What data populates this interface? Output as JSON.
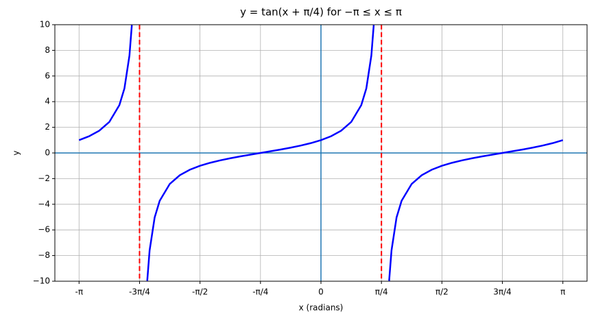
{
  "chart_data": {
    "type": "line",
    "title": "y = tan(x + π/4) for −π ≤ x ≤ π",
    "xlabel": "x (radians)",
    "ylabel": "y",
    "x": [
      -3.1416,
      -3.0107,
      -2.8798,
      -2.7489,
      -2.618,
      -2.5525,
      -2.4871,
      -2.4562,
      -2.3562,
      -2.2562,
      -2.2253,
      -2.1598,
      -2.0944,
      -1.9635,
      -1.8326,
      -1.7017,
      -1.5708,
      -1.4399,
      -1.309,
      -1.1781,
      -1.0472,
      -0.9163,
      -0.7854,
      -0.6545,
      -0.5236,
      -0.3927,
      -0.2618,
      -0.1309,
      0,
      0.1309,
      0.2618,
      0.3927,
      0.5236,
      0.589,
      0.6545,
      0.6854,
      0.7854,
      0.8854,
      0.9163,
      0.9817,
      1.0472,
      1.1781,
      1.309,
      1.4399,
      1.5708,
      1.7017,
      1.8326,
      1.9635,
      2.0944,
      2.2253,
      2.3562,
      2.4871,
      2.618,
      2.7489,
      2.8798,
      3.0107,
      3.1416
    ],
    "values": [
      1,
      1.3032,
      1.7321,
      2.4142,
      3.7321,
      5.0273,
      7.5958,
      9.9666,
      null,
      -9.9666,
      -7.5958,
      -5.0273,
      -3.7321,
      -2.4142,
      -1.7321,
      -1.3032,
      -1,
      -0.7673,
      -0.5774,
      -0.4142,
      -0.2679,
      -0.1317,
      0,
      0.1317,
      0.2679,
      0.4142,
      0.5774,
      0.7673,
      1,
      1.3032,
      1.7321,
      2.4142,
      3.7321,
      5.0273,
      7.5958,
      9.9666,
      null,
      -9.9666,
      -7.5958,
      -5.0273,
      -3.7321,
      -2.4142,
      -1.7321,
      -1.3032,
      -1,
      -0.7673,
      -0.5774,
      -0.4142,
      -0.2679,
      -0.1317,
      0,
      0.1317,
      0.2679,
      0.4142,
      0.5774,
      0.7673,
      1
    ],
    "color": "#0000ff",
    "xlim": [
      -3.4558,
      3.4558
    ],
    "ylim": [
      -10,
      10
    ],
    "xticks": [
      {
        "value": -3.1416,
        "label": "-π"
      },
      {
        "value": -2.3562,
        "label": "-3π/4"
      },
      {
        "value": -1.5708,
        "label": "-π/2"
      },
      {
        "value": -0.7854,
        "label": "-π/4"
      },
      0,
      {
        "value": 0.7854,
        "label": "π/4"
      },
      {
        "value": 1.5708,
        "label": "π/2"
      },
      {
        "value": 2.3562,
        "label": "3π/4"
      },
      {
        "value": 3.1416,
        "label": "π"
      }
    ],
    "yticks": [
      {
        "value": -10,
        "label": "−10"
      },
      {
        "value": -8,
        "label": "−8"
      },
      {
        "value": -6,
        "label": "−6"
      },
      {
        "value": -4,
        "label": "−4"
      },
      {
        "value": -2,
        "label": "−2"
      },
      0,
      2,
      4,
      6,
      8,
      10
    ],
    "asymptotes": [
      -2.3562,
      0.7854
    ],
    "asymptote_color": "#ff0000",
    "axis_lines_color": "#1f77b4",
    "grid": true
  }
}
